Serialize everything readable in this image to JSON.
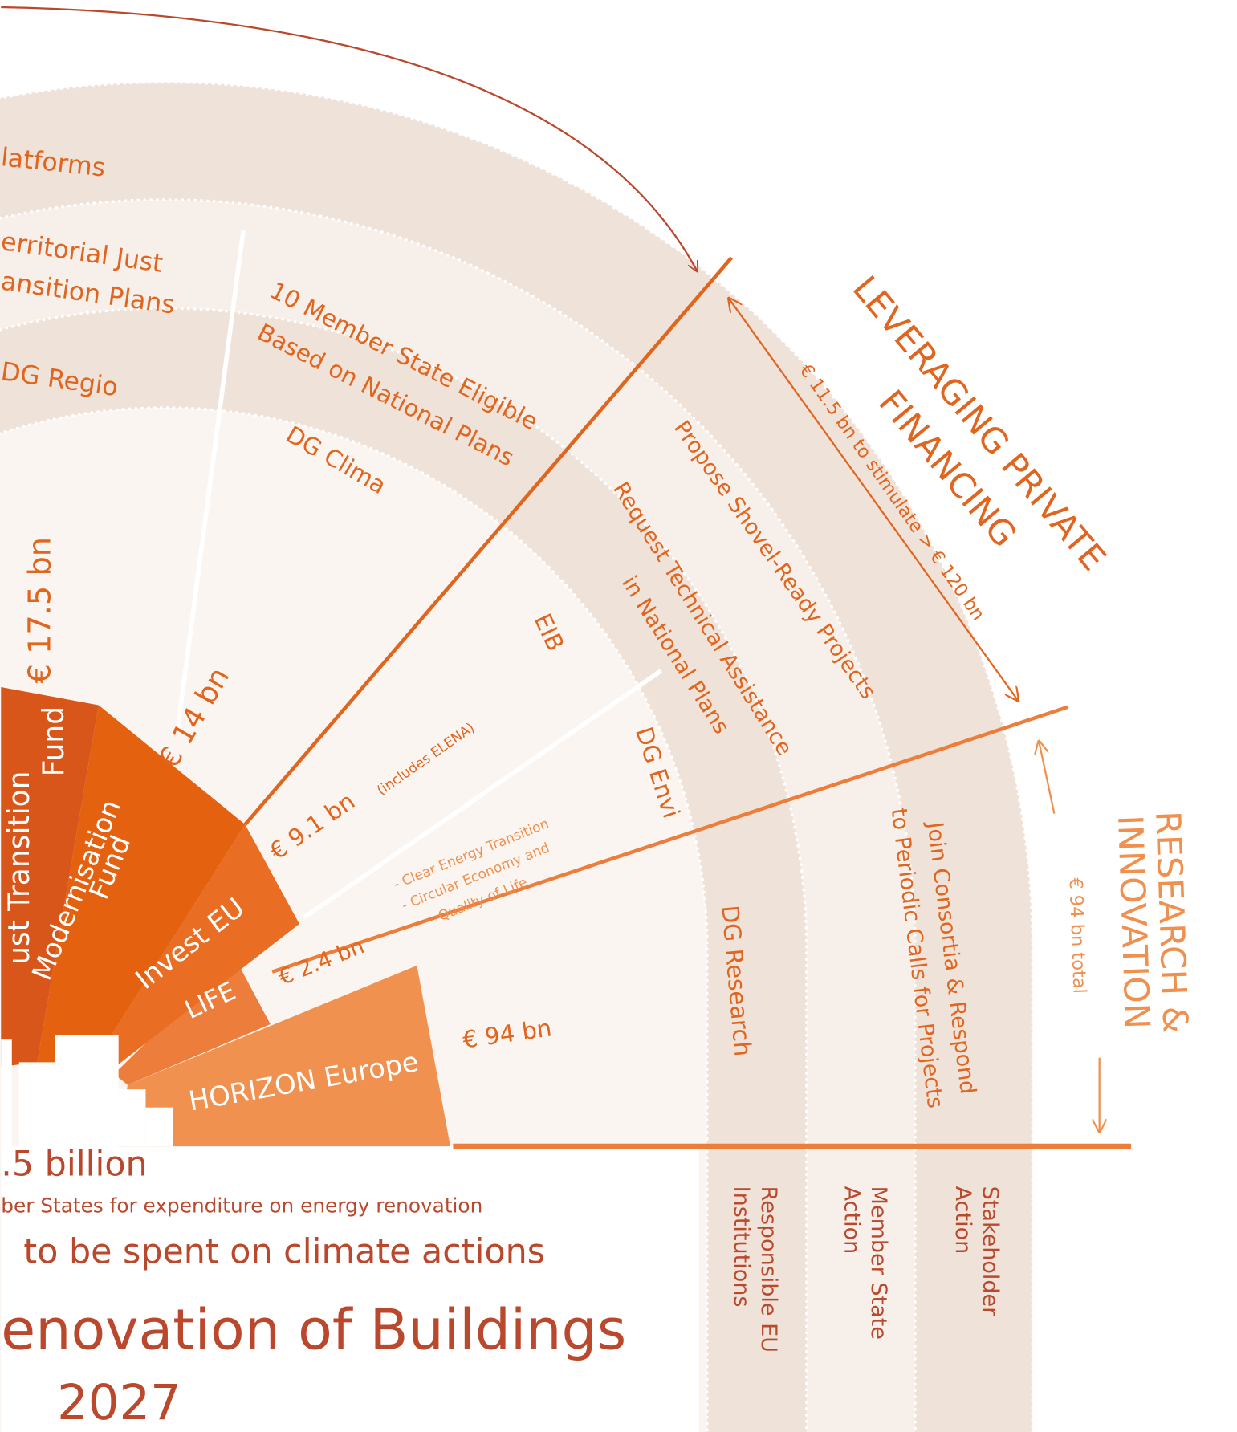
{
  "ring_labels": {
    "platforms": "latforms",
    "territorial": [
      "erritorial Just",
      "ansition Plans"
    ],
    "dg_regio": "DG Regio",
    "member_state_eligible": [
      "10 Member State Eligible",
      "Based on National Plans"
    ],
    "dg_clima": "DG Clima",
    "shovel_ready": "Propose Shovel-Ready Projects",
    "technical_assistance": [
      "Request Technical Assistance",
      "in National Plans"
    ],
    "eib": "EIB",
    "dg_envi": "DG Envi",
    "dg_research": "DG Research",
    "join_consortia": [
      "Join Consortia & Respond",
      "to Periodic Calls for Projects"
    ]
  },
  "funds": [
    {
      "name": [
        "ust Transition",
        "Fund"
      ],
      "amount": "€ 17.5 bn"
    },
    {
      "name": [
        "Modernisation",
        "Fund"
      ],
      "amount": "€ 14 bn"
    },
    {
      "name": [
        "Invest EU"
      ],
      "amount": "€ 9.1 bn",
      "note": [
        "(includes ELENA)"
      ]
    },
    {
      "name": [
        "LIFE"
      ],
      "amount": "€ 2.4 bn",
      "note": [
        "- Clear Energy Transition",
        "- Circular Economy and",
        "Quality of Life"
      ]
    },
    {
      "name": [
        "HORIZON Europe"
      ],
      "amount": "€ 94 bn"
    }
  ],
  "streams": {
    "private": {
      "title": [
        "LEVERAGING PRIVATE",
        "FINANCING"
      ],
      "note": "€ 11.5 bn to stimulate > € 120 bn"
    },
    "research": {
      "title": [
        "RESEARCH &",
        "INNOVATION"
      ],
      "note": "€ 94 bn total"
    }
  },
  "footer": [
    ".5 billion",
    "ber States for expenditure on energy renovation",
    "to be spent on climate actions",
    "enovation of Buildings",
    "2027"
  ],
  "columns": [
    [
      "Responsible EU",
      "Institutions"
    ],
    [
      "Member State",
      "Action"
    ],
    [
      "Stakeholder",
      "Action"
    ]
  ]
}
